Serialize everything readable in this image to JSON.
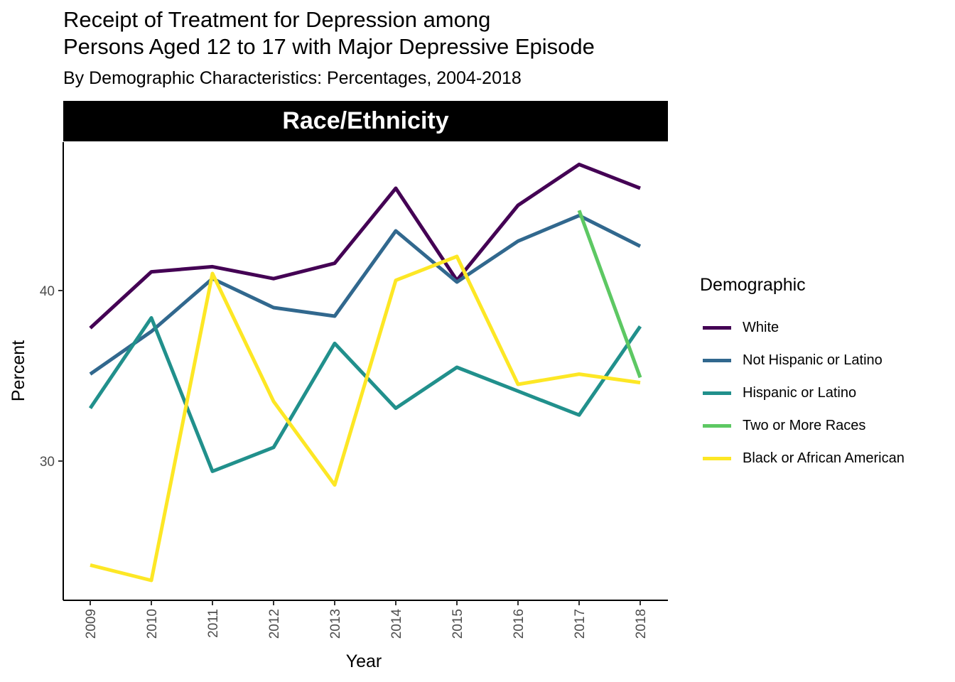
{
  "chart_data": {
    "type": "line",
    "title_lines": [
      "Receipt of Treatment for Depression among",
      "Persons Aged 12 to 17 with Major Depressive Episode"
    ],
    "subtitle": "By Demographic Characteristics: Percentages, 2004-2018",
    "facet_label": "Race/Ethnicity",
    "xlabel": "Year",
    "ylabel": "Percent",
    "x": [
      "2009",
      "2010",
      "2011",
      "2012",
      "2013",
      "2014",
      "2015",
      "2016",
      "2017",
      "2018"
    ],
    "y_ticks": [
      30,
      40
    ],
    "ylim": [
      21.8,
      48.6
    ],
    "grid": false,
    "legend_title": "Demographic",
    "legend_position": "right",
    "series": [
      {
        "name": "White",
        "color": "#440154",
        "values": [
          37.8,
          41.1,
          41.4,
          40.7,
          41.6,
          46.0,
          40.6,
          45.0,
          47.4,
          46.0
        ]
      },
      {
        "name": "Not Hispanic or Latino",
        "color": "#31688E",
        "values": [
          35.1,
          37.6,
          40.7,
          39.0,
          38.5,
          43.5,
          40.5,
          42.9,
          44.4,
          42.6
        ]
      },
      {
        "name": "Hispanic or Latino",
        "color": "#21908C",
        "values": [
          33.1,
          38.4,
          29.4,
          30.8,
          36.9,
          33.1,
          35.5,
          34.1,
          32.7,
          37.9
        ]
      },
      {
        "name": "Two or More Races",
        "color": "#5DC863",
        "values": [
          null,
          null,
          null,
          null,
          null,
          null,
          null,
          null,
          44.7,
          34.9
        ]
      },
      {
        "name": "Black or African American",
        "color": "#FDE725",
        "values": [
          23.9,
          23.0,
          41.0,
          33.5,
          28.6,
          40.6,
          42.0,
          34.5,
          35.1,
          34.6
        ]
      }
    ]
  }
}
